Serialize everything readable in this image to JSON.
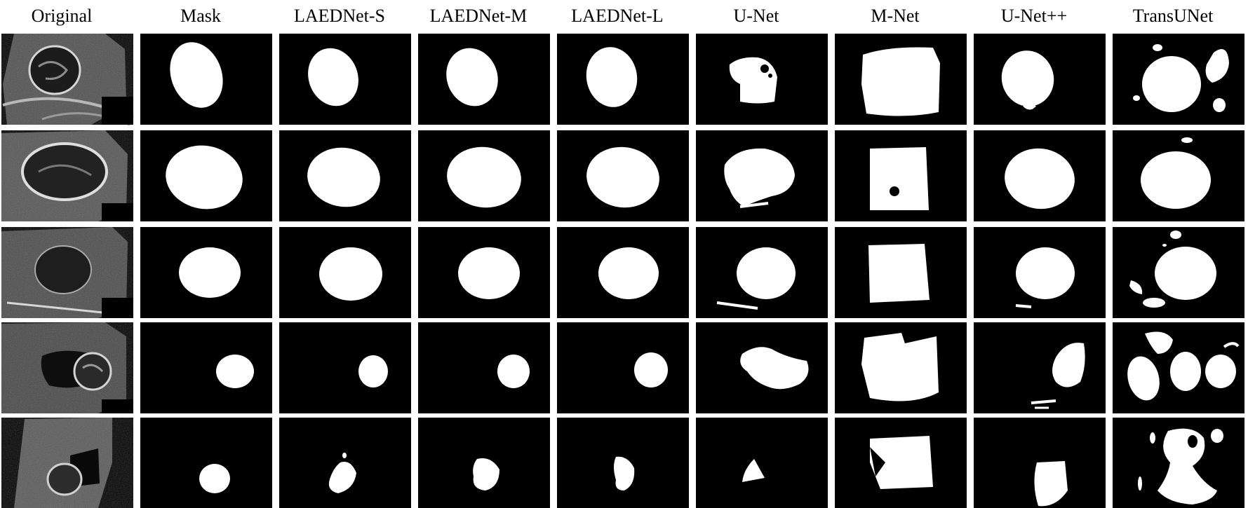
{
  "figure": {
    "columns": [
      {
        "label": "Original"
      },
      {
        "label": "Mask"
      },
      {
        "label": "LAEDNet-S"
      },
      {
        "label": "LAEDNet-M"
      },
      {
        "label": "LAEDNet-L"
      },
      {
        "label": "U-Net"
      },
      {
        "label": "M-Net"
      },
      {
        "label": "U-Net++"
      },
      {
        "label": "TransUNet"
      }
    ],
    "rows": 5,
    "colors": {
      "background": "#ffffff",
      "panel": "#000000",
      "foreground": "#ffffff",
      "ultrasound_tissue": "#8a8a8a"
    }
  }
}
